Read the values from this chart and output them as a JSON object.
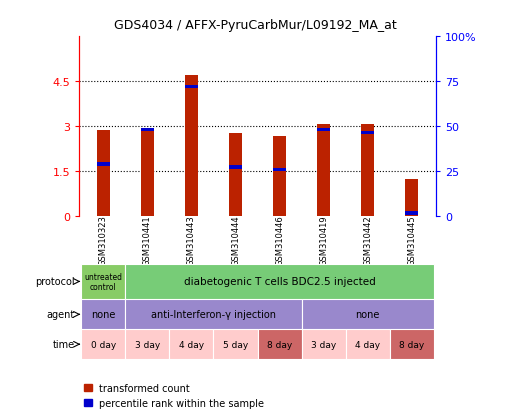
{
  "title": "GDS4034 / AFFX-PyruCarbMur/L09192_MA_at",
  "samples": [
    "GSM310323",
    "GSM310441",
    "GSM310443",
    "GSM310444",
    "GSM310446",
    "GSM310419",
    "GSM310442",
    "GSM310445"
  ],
  "red_values": [
    2.85,
    2.88,
    4.72,
    2.78,
    2.68,
    3.05,
    3.08,
    1.22
  ],
  "blue_values": [
    1.72,
    2.88,
    4.32,
    1.62,
    1.55,
    2.88,
    2.78,
    0.08
  ],
  "blue_thickness": [
    0.12,
    0.12,
    0.12,
    0.12,
    0.12,
    0.12,
    0.12,
    0.12
  ],
  "ylim_left": [
    0,
    6
  ],
  "ylim_right": [
    0,
    100
  ],
  "yticks_left": [
    0,
    1.5,
    3.0,
    4.5
  ],
  "ytick_labels_left": [
    "0",
    "1.5",
    "3",
    "4.5"
  ],
  "yticks_right": [
    0,
    25,
    50,
    75,
    100
  ],
  "ytick_labels_right": [
    "0",
    "25",
    "50",
    "75",
    "100%"
  ],
  "bar_width": 0.3,
  "red_color": "#bb2200",
  "blue_color": "#0000cc",
  "bg_color": "#ffffff",
  "chart_bg": "#ffffff",
  "label_bg": "#cccccc",
  "protocol_row": [
    {
      "label": "untreated\ncontrol",
      "start": 0,
      "end": 1,
      "color": "#88cc66",
      "fontsize": 5.5
    },
    {
      "label": "diabetogenic T cells BDC2.5 injected",
      "start": 1,
      "end": 8,
      "color": "#77cc77",
      "fontsize": 7.5
    }
  ],
  "agent_row": [
    {
      "label": "none",
      "start": 0,
      "end": 1,
      "color": "#9988cc",
      "fontsize": 7
    },
    {
      "label": "anti-Interferon-γ injection",
      "start": 1,
      "end": 5,
      "color": "#9988cc",
      "fontsize": 7
    },
    {
      "label": "none",
      "start": 5,
      "end": 8,
      "color": "#9988cc",
      "fontsize": 7
    }
  ],
  "time_row": [
    {
      "label": "0 day",
      "color": "#ffcccc"
    },
    {
      "label": "3 day",
      "color": "#ffcccc"
    },
    {
      "label": "4 day",
      "color": "#ffcccc"
    },
    {
      "label": "5 day",
      "color": "#ffcccc"
    },
    {
      "label": "8 day",
      "color": "#cc6666"
    },
    {
      "label": "3 day",
      "color": "#ffcccc"
    },
    {
      "label": "4 day",
      "color": "#ffcccc"
    },
    {
      "label": "8 day",
      "color": "#cc6666"
    }
  ],
  "row_labels": [
    "protocol",
    "agent",
    "time"
  ],
  "legend_red": "transformed count",
  "legend_blue": "percentile rank within the sample"
}
